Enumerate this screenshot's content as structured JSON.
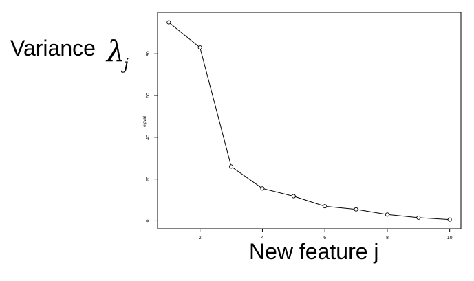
{
  "chart_data": {
    "type": "line",
    "x": [
      1,
      2,
      3,
      4,
      5,
      6,
      7,
      8,
      9,
      10
    ],
    "series": [
      {
        "values": [
          95,
          83,
          26,
          15.5,
          11.8,
          7,
          5.5,
          3,
          1.5,
          0.6
        ]
      }
    ],
    "ylabel": "Variance",
    "ylabel_symbol": "λ",
    "ylabel_subscript": "j",
    "xlabel": "New feature j",
    "small_ylabel": "eigval",
    "xticks": [
      2,
      4,
      6,
      8,
      10
    ],
    "yticks": [
      0,
      20,
      40,
      60,
      80
    ],
    "xlim": [
      0.64,
      10.36
    ],
    "ylim": [
      -3.8,
      99.8
    ],
    "grid": false,
    "markers": "open-circle"
  }
}
